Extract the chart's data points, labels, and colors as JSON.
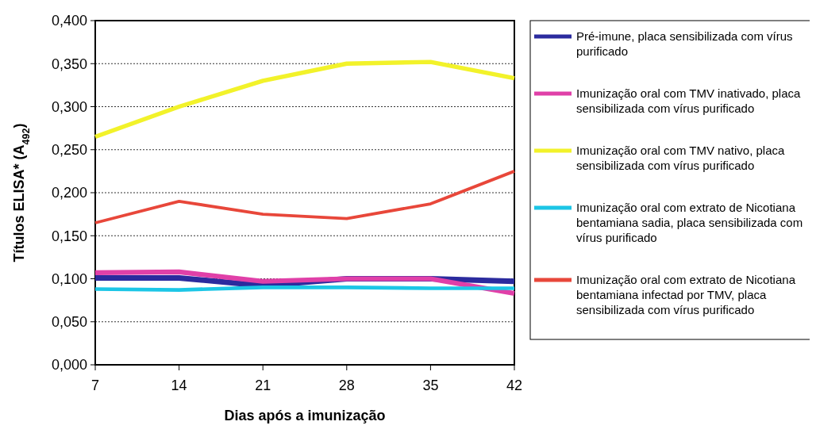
{
  "chart_data": {
    "type": "line",
    "xlabel": "Dias após a imunização",
    "ylabel": "Títulos ELISA* (A$_{492}$)",
    "x": [
      7,
      14,
      21,
      28,
      35,
      42
    ],
    "xlim": [
      7,
      42
    ],
    "xticks": [
      7,
      14,
      21,
      28,
      35,
      42
    ],
    "ylim": [
      0,
      0.4
    ],
    "yticks": [
      {
        "value": 0,
        "label": "0,000"
      },
      {
        "value": 0.05,
        "label": "0,050"
      },
      {
        "value": 0.1,
        "label": "0,100"
      },
      {
        "value": 0.15,
        "label": "0,150"
      },
      {
        "value": 0.2,
        "label": "0,200"
      },
      {
        "value": 0.25,
        "label": "0,250"
      },
      {
        "value": 0.3,
        "label": "0,300"
      },
      {
        "value": 0.35,
        "label": "0,350"
      },
      {
        "value": 0.4,
        "label": "0,400"
      }
    ],
    "grid": "y",
    "legend": "right",
    "marker": "none",
    "line_style": "solid",
    "series": [
      {
        "name": "Pré-imune, placa sensibilizada com vírus purificado",
        "color": "#2b2b9e",
        "values": [
          0.101,
          0.101,
          0.092,
          0.1,
          0.1,
          0.097
        ]
      },
      {
        "name": "Imunização oral com TMV inativado, placa sensibilizada com vírus purificado",
        "color": "#e040a8",
        "values": [
          0.107,
          0.108,
          0.097,
          0.1,
          0.1,
          0.083
        ]
      },
      {
        "name": "Imunização oral com TMV nativo, placa sensibilizada com vírus purificado",
        "color": "#f2f22a",
        "values": [
          0.265,
          0.3,
          0.33,
          0.35,
          0.352,
          0.333
        ]
      },
      {
        "name": "Imunização oral com extrato de Nicotiana bentamiana sadia, placa sensibilizada com vírus purificado",
        "color": "#1cc6e6",
        "values": [
          0.088,
          0.087,
          0.09,
          0.09,
          0.089,
          0.089
        ]
      },
      {
        "name": "Imunização oral com extrato de Nicotiana bentamiana infectad por TMV, placa sensibilizada com vírus purificado",
        "color": "#e8473a",
        "values": [
          0.165,
          0.19,
          0.175,
          0.17,
          0.187,
          0.225
        ]
      }
    ]
  }
}
